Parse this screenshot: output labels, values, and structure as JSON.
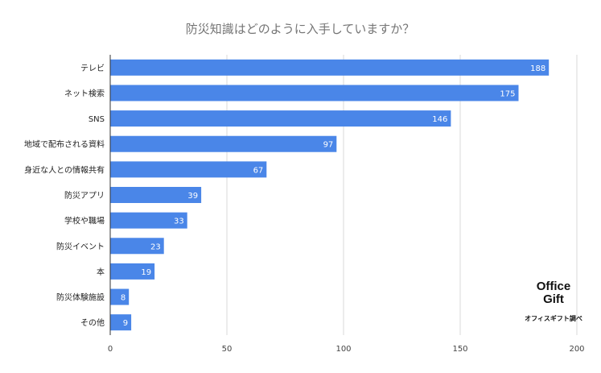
{
  "chart_data": {
    "type": "bar",
    "orientation": "horizontal",
    "title": "防災知識はどのように入手していますか？",
    "categories": [
      "テレビ",
      "ネット検索",
      "SNS",
      "地域で配布される資料",
      "身近な人との情報共有",
      "防災アプリ",
      "学校や職場",
      "防災イベント",
      "本",
      "防災体験施設",
      "その他"
    ],
    "values": [
      188,
      175,
      146,
      97,
      67,
      39,
      33,
      23,
      19,
      8,
      9
    ],
    "xlim": [
      0,
      200
    ],
    "xticks": [
      0,
      50,
      100,
      150,
      200
    ],
    "xlabel": "",
    "ylabel": "",
    "grid": true,
    "bar_color": "#4a86e8"
  },
  "brand": {
    "line1": "Office",
    "line2": "Gift",
    "caption": "オフィスギフト調べ"
  }
}
